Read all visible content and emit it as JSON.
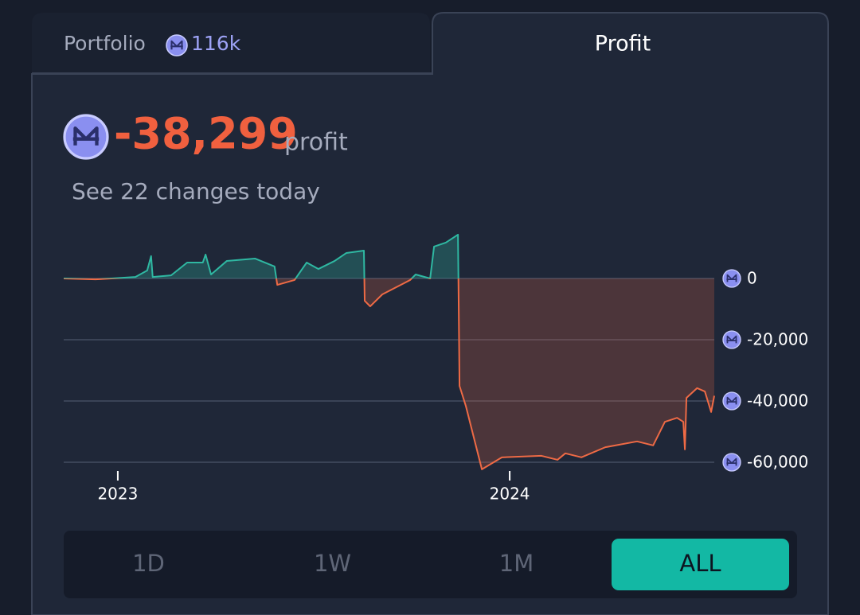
{
  "tabs": [
    {
      "label": "Portfolio",
      "value": "116k"
    },
    {
      "label": "Profit"
    }
  ],
  "summary": {
    "value": "-38,299",
    "label": "profit",
    "changes": "See 22 changes today"
  },
  "chart_data": {
    "type": "line",
    "x": [
      2022.862,
      2022.943,
      2022.984,
      2023.045,
      2023.075,
      2023.085,
      2023.089,
      2023.136,
      2023.177,
      2023.217,
      2023.224,
      2023.238,
      2023.278,
      2023.35,
      2023.4,
      2023.407,
      2023.451,
      2023.482,
      2023.512,
      2023.553,
      2023.583,
      2023.628,
      2023.63,
      2023.644,
      2023.675,
      2023.746,
      2023.76,
      2023.797,
      2023.807,
      2023.837,
      2023.868,
      2023.872,
      2023.888,
      2023.929,
      2023.98,
      2024.081,
      2024.122,
      2024.142,
      2024.183,
      2024.244,
      2024.325,
      2024.366,
      2024.396,
      2024.427,
      2024.443,
      2024.447,
      2024.451,
      2024.478,
      2024.498,
      2024.514,
      2024.522
    ],
    "values": [
      0,
      -300,
      0,
      500,
      2600,
      7300,
      500,
      1000,
      5200,
      5200,
      7800,
      1300,
      5700,
      6500,
      3900,
      -2100,
      -500,
      5200,
      3100,
      5700,
      8300,
      9100,
      -7300,
      -9100,
      -5200,
      -500,
      1300,
      0,
      10400,
      11700,
      14300,
      -35100,
      -41600,
      -62300,
      -58400,
      -57900,
      -59200,
      -57100,
      -58400,
      -55100,
      -53200,
      -54500,
      -46800,
      -45500,
      -46800,
      -55800,
      -39000,
      -35800,
      -36900,
      -43600,
      -38299
    ],
    "xlim": [
      2022.862,
      2024.522
    ],
    "ylim": [
      -64000,
      16000
    ],
    "xticks": [
      2023,
      2024
    ],
    "yticks": [
      {
        "value": 0,
        "label": "0"
      },
      {
        "value": -20000,
        "label": "-20,000"
      },
      {
        "value": -40000,
        "label": "-40,000"
      },
      {
        "value": -60000,
        "label": "-60,000"
      }
    ],
    "grid": true,
    "color_positive": "#2fb8a2",
    "color_negative": "#ee6a45"
  },
  "range_buttons": [
    "1D",
    "1W",
    "1M",
    "ALL"
  ],
  "selected_range": "ALL"
}
